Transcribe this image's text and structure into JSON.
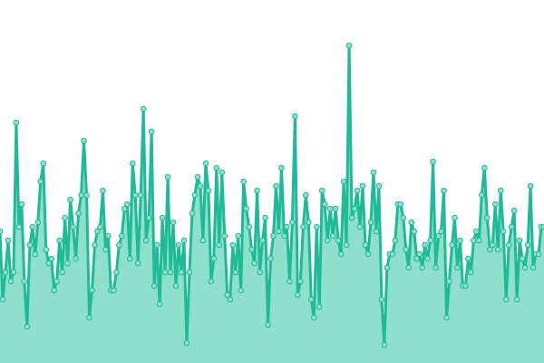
{
  "chart_data": {
    "type": "area",
    "color": "#1fbb96",
    "fill_color": "#8ee0cd",
    "marker_fill": "#8ee0cd",
    "ylim": [
      0,
      400
    ],
    "values": [
      145,
      70,
      100,
      135,
      90,
      100,
      265,
      150,
      175,
      90,
      40,
      130,
      150,
      120,
      155,
      200,
      220,
      125,
      110,
      115,
      80,
      90,
      135,
      100,
      160,
      110,
      180,
      150,
      115,
      165,
      185,
      245,
      185,
      50,
      80,
      130,
      145,
      150,
      190,
      125,
      140,
      80,
      80,
      100,
      130,
      140,
      170,
      175,
      115,
      220,
      185,
      110,
      185,
      280,
      135,
      160,
      255,
      85,
      130,
      65,
      160,
      100,
      205,
      100,
      155,
      85,
      130,
      100,
      135,
      22,
      100,
      165,
      185,
      205,
      195,
      135,
      220,
      190,
      90,
      115,
      215,
      130,
      210,
      140,
      75,
      70,
      130,
      100,
      140,
      80,
      200,
      170,
      150,
      125,
      110,
      190,
      100,
      135,
      160,
      42,
      115,
      140,
      195,
      145,
      215,
      140,
      150,
      90,
      155,
      272,
      75,
      90,
      150,
      185,
      155,
      70,
      50,
      150,
      62,
      190,
      175,
      135,
      170,
      140,
      170,
      135,
      120,
      200,
      130,
      350,
      160,
      170,
      190,
      150,
      195,
      130,
      120,
      155,
      210,
      145,
      195,
      70,
      20,
      105,
      120,
      120,
      135,
      175,
      175,
      160,
      125,
      105,
      155,
      145,
      115,
      120,
      105,
      130,
      115,
      135,
      222,
      105,
      140,
      145,
      190,
      50,
      90,
      130,
      160,
      105,
      135,
      85,
      85,
      115,
      100,
      135,
      145,
      135,
      185,
      215,
      160,
      125,
      130,
      175,
      125,
      190,
      145,
      70,
      130,
      150,
      168,
      70,
      135,
      115,
      105,
      130,
      195,
      105,
      120,
      120,
      150,
      150
    ]
  }
}
